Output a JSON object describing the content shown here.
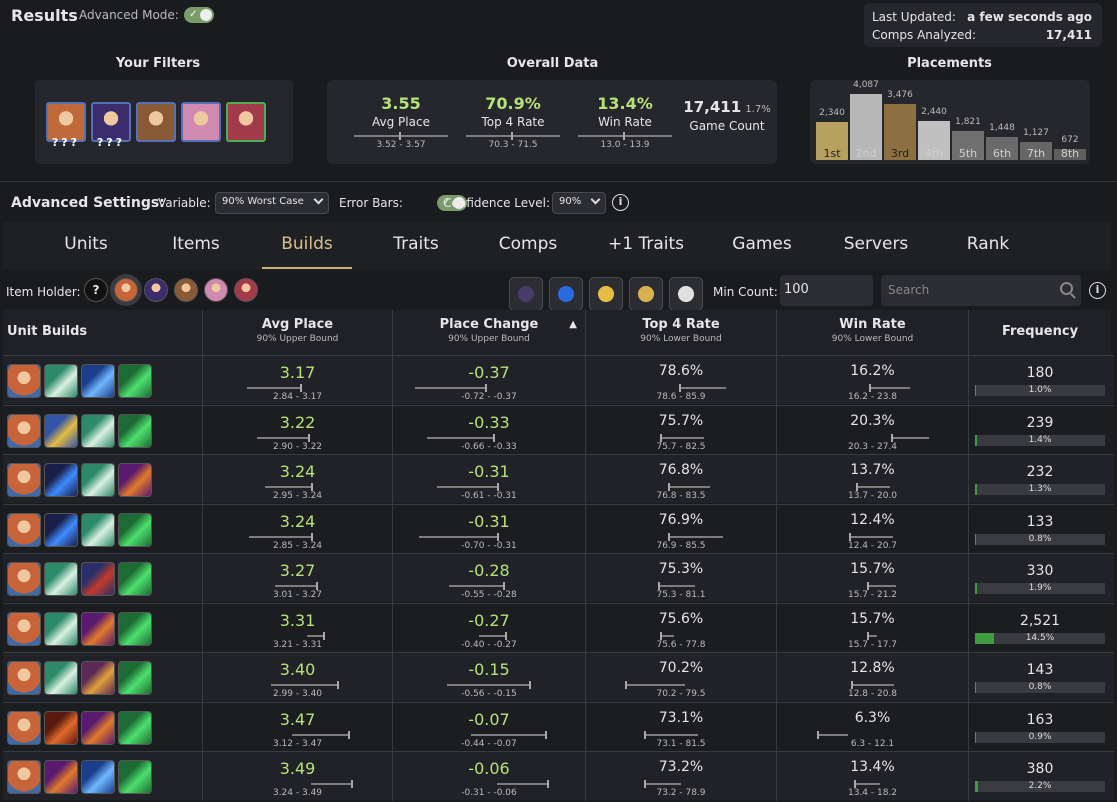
{
  "header": {
    "title": "Results",
    "advanced_mode_label": "Advanced Mode:",
    "last_updated_label": "Last Updated:",
    "last_updated_value": "a few seconds ago",
    "comps_label": "Comps Analyzed:",
    "comps_value": "17,411"
  },
  "filters": {
    "title": "Your Filters",
    "units": [
      {
        "color": "#c06a3a",
        "marks": "???"
      },
      {
        "color": "#3b2c6b",
        "marks": "???"
      },
      {
        "color": "#8a5a34",
        "marks": ""
      },
      {
        "color": "#d08ab0",
        "marks": ""
      },
      {
        "color": "#a33a4a",
        "marks": ""
      }
    ]
  },
  "overall": {
    "title": "Overall Data",
    "avg_place": {
      "value": "3.55",
      "label": "Avg Place",
      "range": "3.52 - 3.57"
    },
    "top4": {
      "value": "70.9%",
      "label": "Top 4 Rate",
      "range": "70.3 - 71.5"
    },
    "win": {
      "value": "13.4%",
      "label": "Win Rate",
      "range": "13.0 - 13.9"
    },
    "game_count": {
      "value": "17,411",
      "pct": "1.7%",
      "label": "Game Count"
    }
  },
  "placements": {
    "title": "Placements",
    "labels": [
      "1st",
      "2nd",
      "3rd",
      "4th",
      "5th",
      "6th",
      "7th",
      "8th"
    ],
    "values": [
      2340,
      4087,
      3476,
      2440,
      1821,
      1448,
      1127,
      672
    ],
    "value_labels": [
      "2,340",
      "4,087",
      "3,476",
      "2,440",
      "1,821",
      "1,448",
      "1,127",
      "672"
    ],
    "colors": [
      "#b6a060",
      "#b8b8b8",
      "#8d7042",
      "#c0c0c0",
      "#707070",
      "#6a6a6a",
      "#666666",
      "#5e5e5e"
    ]
  },
  "settings": {
    "label": "Advanced Settings:",
    "variable_label": "Variable:",
    "variable_value": "90% Worst Case",
    "error_bars_label": "Error Bars:",
    "confidence_label": "Confidence Level:",
    "confidence_value": "90%"
  },
  "tabs": [
    "Units",
    "Items",
    "Builds",
    "Traits",
    "Comps",
    "+1 Traits",
    "Games",
    "Servers",
    "Rank"
  ],
  "toolbar": {
    "item_holder_label": "Item Holder:",
    "min_count_label": "Min Count:",
    "min_count_value": "100",
    "search_placeholder": "Search"
  },
  "table": {
    "headers": {
      "unit_builds": "Unit Builds",
      "avg_place": "Avg Place",
      "avg_place_sub": "90% Upper Bound",
      "place_change": "Place Change",
      "place_change_sub": "90% Upper Bound",
      "top4": "Top 4 Rate",
      "top4_sub": "90% Lower Bound",
      "win": "Win Rate",
      "win_sub": "90% Lower Bound",
      "frequency": "Frequency"
    },
    "rows": [
      {
        "icons": [
          "unit-portrait",
          "bow-item",
          "blue-wing-item",
          "green-sword-item"
        ],
        "avg": "3.17",
        "avg_range": "2.84 - 3.17",
        "pc": "-0.37",
        "pc_range": "-0.72 - -0.37",
        "top4": "78.6%",
        "top4_range": "78.6 - 85.9",
        "win": "16.2%",
        "win_range": "16.2 - 23.8",
        "freq": "180",
        "freq_pct": "1.0%",
        "freq_frac": 0.01
      },
      {
        "icons": [
          "unit-portrait",
          "gold-helm-item",
          "bow-item",
          "green-sword-item"
        ],
        "avg": "3.22",
        "avg_range": "2.90 - 3.22",
        "pc": "-0.33",
        "pc_range": "-0.66 - -0.33",
        "top4": "75.7%",
        "top4_range": "75.7 - 82.5",
        "win": "20.3%",
        "win_range": "20.3 - 27.4",
        "freq": "239",
        "freq_pct": "1.4%",
        "freq_frac": 0.014
      },
      {
        "icons": [
          "unit-portrait",
          "blue-orb-item",
          "bow-item",
          "purple-fist-item"
        ],
        "avg": "3.24",
        "avg_range": "2.95 - 3.24",
        "pc": "-0.31",
        "pc_range": "-0.61 - -0.31",
        "top4": "76.8%",
        "top4_range": "76.8 - 83.5",
        "win": "13.7%",
        "win_range": "13.7 - 20.0",
        "freq": "232",
        "freq_pct": "1.3%",
        "freq_frac": 0.013
      },
      {
        "icons": [
          "unit-portrait",
          "blue-orb-item",
          "bow-item",
          "green-sword-item"
        ],
        "avg": "3.24",
        "avg_range": "2.85 - 3.24",
        "pc": "-0.31",
        "pc_range": "-0.70 - -0.31",
        "top4": "76.9%",
        "top4_range": "76.9 - 85.5",
        "win": "12.4%",
        "win_range": "12.4 - 20.7",
        "freq": "133",
        "freq_pct": "0.8%",
        "freq_frac": 0.008
      },
      {
        "icons": [
          "unit-portrait",
          "bow-item",
          "red-hat-item",
          "green-sword-item"
        ],
        "avg": "3.27",
        "avg_range": "3.01 - 3.27",
        "pc": "-0.28",
        "pc_range": "-0.55 - -0.28",
        "top4": "75.3%",
        "top4_range": "75.3 - 81.1",
        "win": "15.7%",
        "win_range": "15.7 - 21.2",
        "freq": "330",
        "freq_pct": "1.9%",
        "freq_frac": 0.019
      },
      {
        "icons": [
          "unit-portrait",
          "bow-item",
          "purple-fist-item",
          "green-sword-item"
        ],
        "avg": "3.31",
        "avg_range": "3.21 - 3.31",
        "pc": "-0.27",
        "pc_range": "-0.40 - -0.27",
        "top4": "75.6%",
        "top4_range": "75.6 - 77.8",
        "win": "15.7%",
        "win_range": "15.7 - 17.7",
        "freq": "2,521",
        "freq_pct": "14.5%",
        "freq_frac": 0.145
      },
      {
        "icons": [
          "unit-portrait",
          "bow-item",
          "gold-spear-item",
          "green-sword-item"
        ],
        "avg": "3.40",
        "avg_range": "2.99 - 3.40",
        "pc": "-0.15",
        "pc_range": "-0.56 - -0.15",
        "top4": "70.2%",
        "top4_range": "70.2 - 79.5",
        "win": "12.8%",
        "win_range": "12.8 - 20.8",
        "freq": "143",
        "freq_pct": "0.8%",
        "freq_frac": 0.008
      },
      {
        "icons": [
          "unit-portrait",
          "fire-blade-item",
          "purple-fist-item",
          "green-sword-item"
        ],
        "avg": "3.47",
        "avg_range": "3.12 - 3.47",
        "pc": "-0.07",
        "pc_range": "-0.44 - -0.07",
        "top4": "73.1%",
        "top4_range": "73.1 - 81.5",
        "win": "6.3%",
        "win_range": "6.3 - 12.1",
        "freq": "163",
        "freq_pct": "0.9%",
        "freq_frac": 0.009
      },
      {
        "icons": [
          "unit-portrait",
          "purple-fist-item",
          "blue-wing-item",
          "green-sword-item"
        ],
        "avg": "3.49",
        "avg_range": "3.24 - 3.49",
        "pc": "-0.06",
        "pc_range": "-0.31 - -0.06",
        "top4": "73.2%",
        "top4_range": "73.2 - 78.9",
        "win": "13.4%",
        "win_range": "13.4 - 18.2",
        "freq": "380",
        "freq_pct": "2.2%",
        "freq_frac": 0.022
      }
    ]
  }
}
